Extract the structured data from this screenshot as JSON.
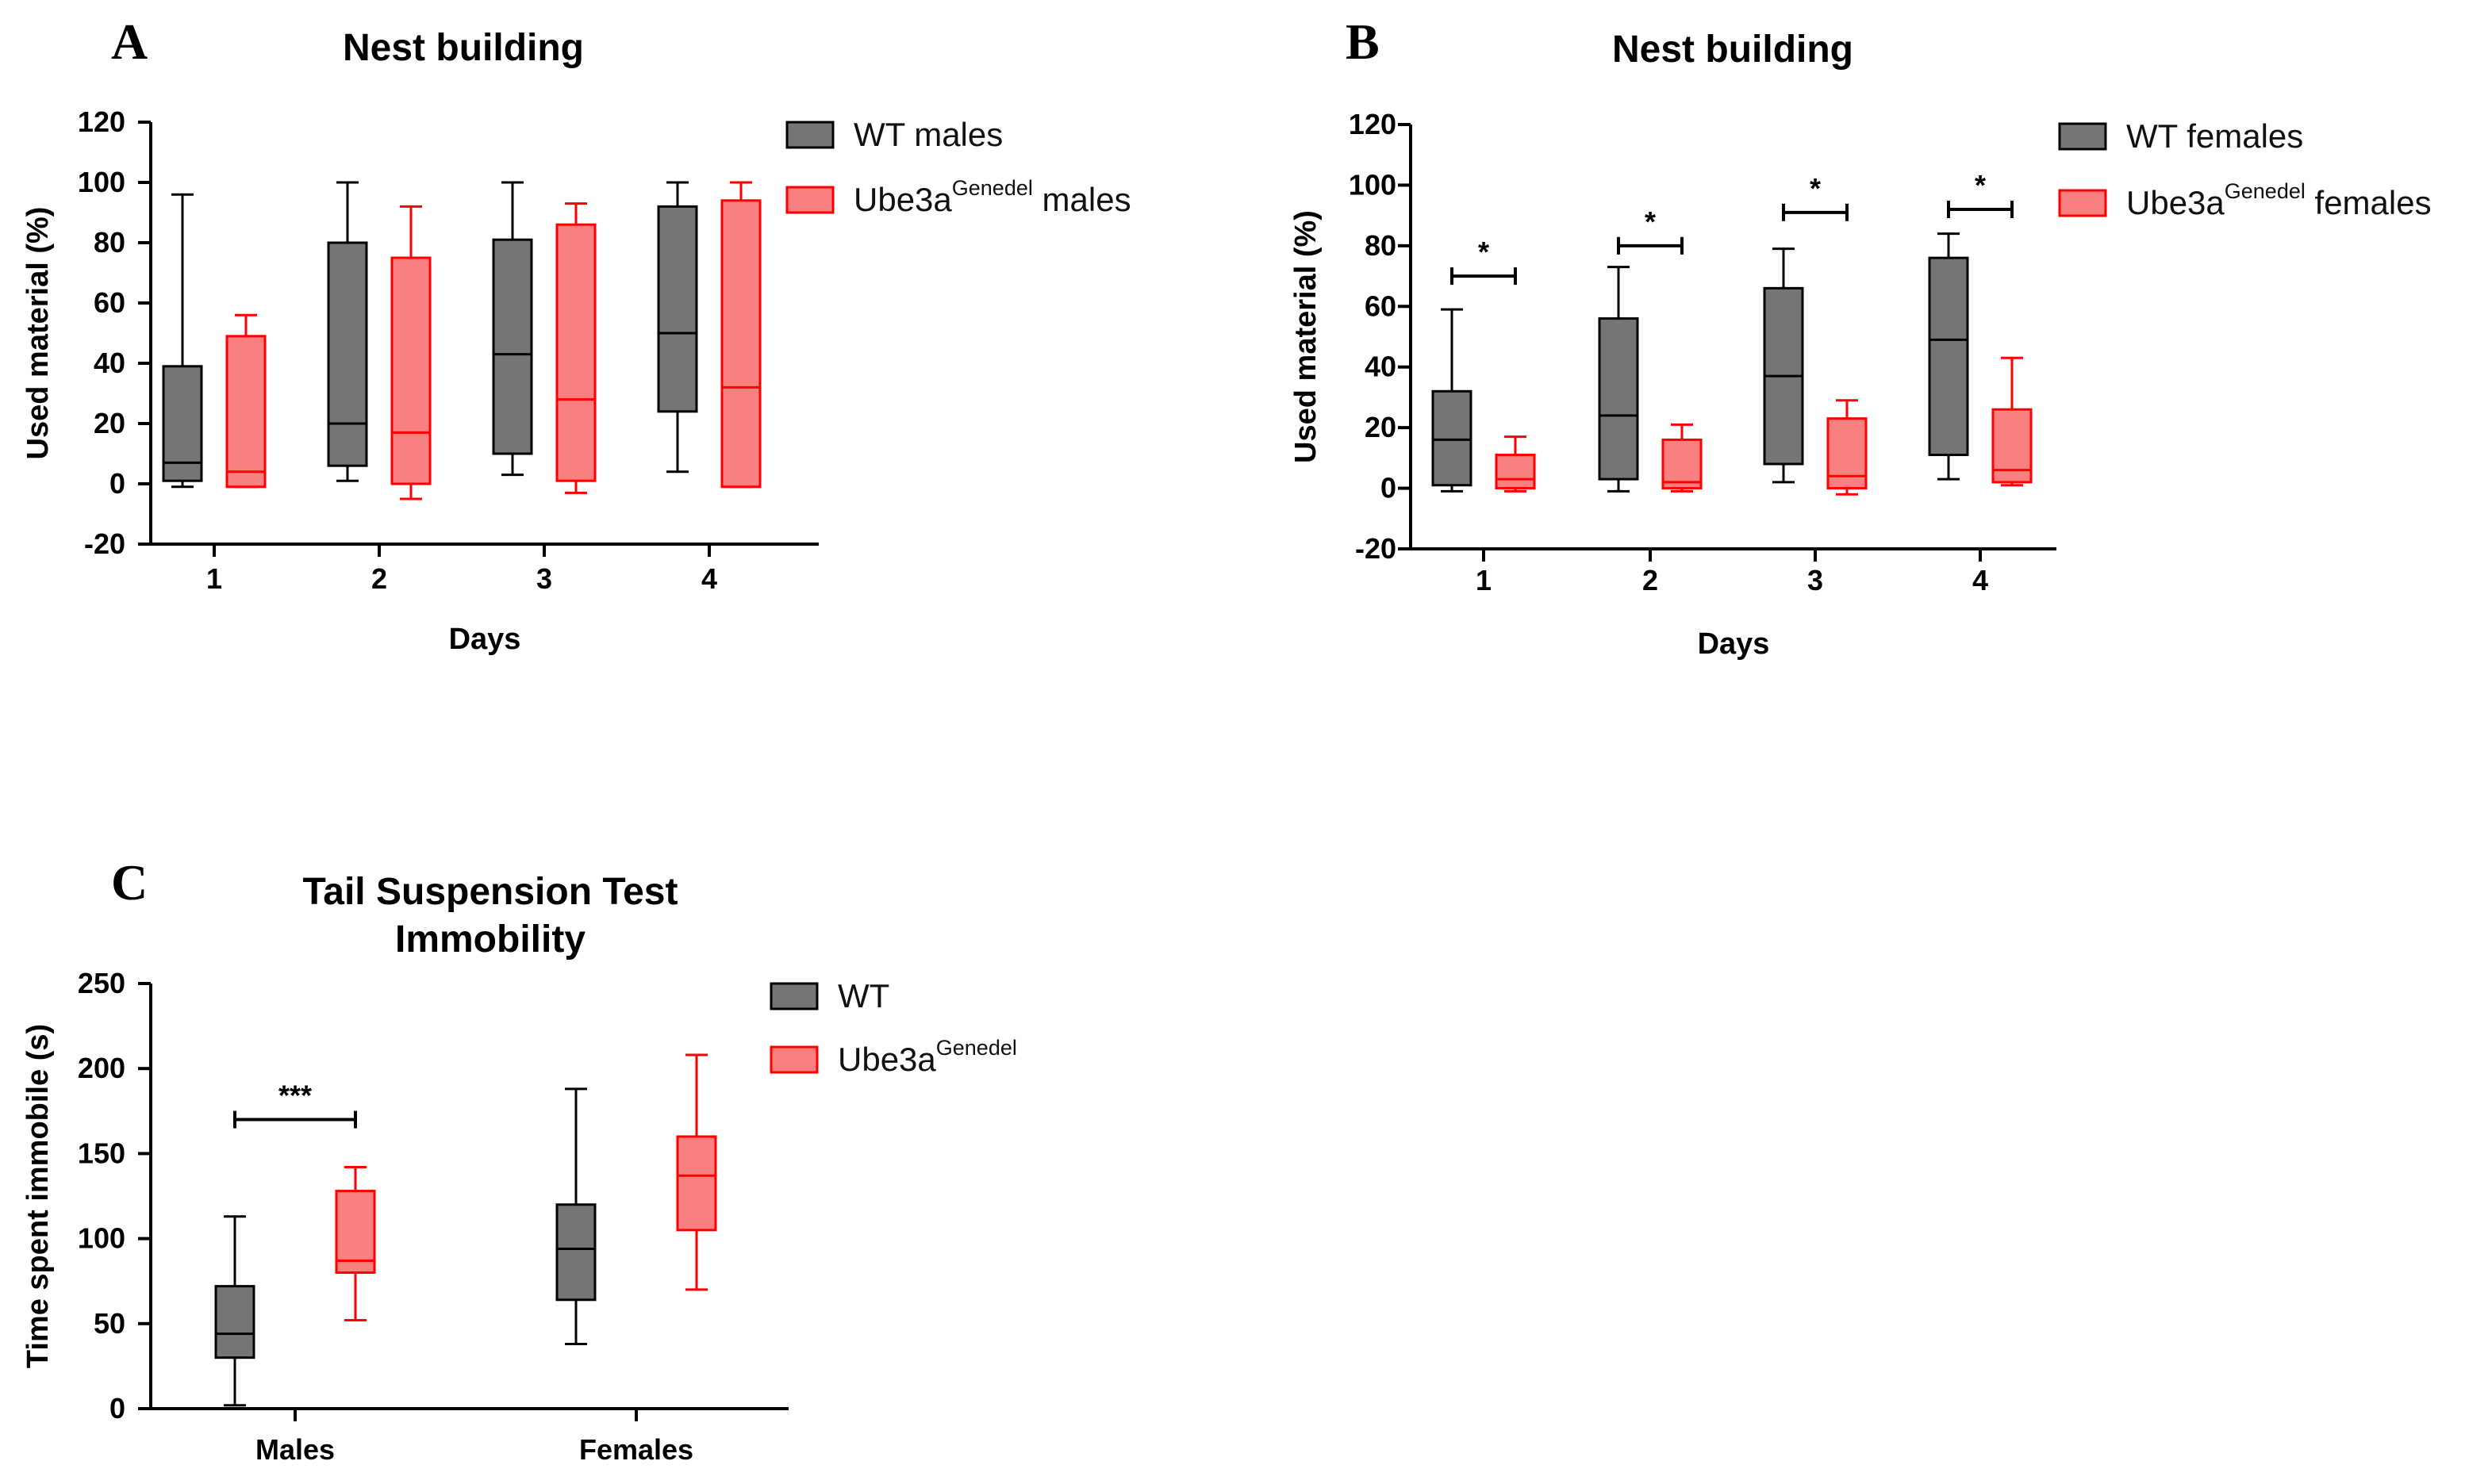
{
  "chart_data": [
    {
      "id": "A",
      "type": "box",
      "panel_letter": "A",
      "title": "Nest building",
      "xlabel": "Days",
      "ylabel": "Used material (%)",
      "ylim": [
        -20,
        120
      ],
      "yticks": [
        "-20",
        "0",
        "20",
        "40",
        "60",
        "80",
        "100",
        "120"
      ],
      "categories": [
        "1",
        "2",
        "3",
        "4"
      ],
      "legend_position": "top-right",
      "series": [
        {
          "name": "WT males",
          "legend_parts": [
            "WT males"
          ],
          "fill": "#757575",
          "stroke": "#000000",
          "boxes": [
            {
              "min": -1,
              "q1": 1,
              "median": 7,
              "q3": 39,
              "max": 96
            },
            {
              "min": 1,
              "q1": 6,
              "median": 20,
              "q3": 80,
              "max": 100
            },
            {
              "min": 3,
              "q1": 10,
              "median": 43,
              "q3": 81,
              "max": 100
            },
            {
              "min": 4,
              "q1": 24,
              "median": 50,
              "q3": 92,
              "max": 100
            }
          ]
        },
        {
          "name": "Ube3a Genedel males",
          "legend_parts": [
            "Ube3a",
            "Genedel",
            " males"
          ],
          "fill": "#F98080",
          "stroke": "#FF0000",
          "boxes": [
            {
              "min": -1,
              "q1": -1,
              "median": 4,
              "q3": 49,
              "max": 56
            },
            {
              "min": -5,
              "q1": 0,
              "median": 17,
              "q3": 75,
              "max": 92
            },
            {
              "min": -3,
              "q1": 1,
              "median": 28,
              "q3": 86,
              "max": 93
            },
            {
              "min": -1,
              "q1": -1,
              "median": 32,
              "q3": 94,
              "max": 100
            }
          ]
        }
      ],
      "significance": []
    },
    {
      "id": "B",
      "type": "box",
      "panel_letter": "B",
      "title": "Nest building",
      "xlabel": "Days",
      "ylabel": "Used material (%)",
      "ylim": [
        -20,
        120
      ],
      "yticks": [
        "-20",
        "0",
        "20",
        "40",
        "60",
        "80",
        "100",
        "120"
      ],
      "categories": [
        "1",
        "2",
        "3",
        "4"
      ],
      "legend_position": "top-right",
      "series": [
        {
          "name": "WT females",
          "legend_parts": [
            "WT females"
          ],
          "fill": "#757575",
          "stroke": "#000000",
          "boxes": [
            {
              "min": -1,
              "q1": 1,
              "median": 16,
              "q3": 32,
              "max": 59
            },
            {
              "min": -1,
              "q1": 3,
              "median": 24,
              "q3": 56,
              "max": 73
            },
            {
              "min": 2,
              "q1": 8,
              "median": 37,
              "q3": 66,
              "max": 79
            },
            {
              "min": 3,
              "q1": 11,
              "median": 49,
              "q3": 76,
              "max": 84
            }
          ]
        },
        {
          "name": "Ube3a Genedel females",
          "legend_parts": [
            "Ube3a",
            "Genedel",
            " females"
          ],
          "fill": "#F98080",
          "stroke": "#FF0000",
          "boxes": [
            {
              "min": -1,
              "q1": 0,
              "median": 3,
              "q3": 11,
              "max": 17
            },
            {
              "min": -1,
              "q1": 0,
              "median": 2,
              "q3": 16,
              "max": 21
            },
            {
              "min": -2,
              "q1": 0,
              "median": 4,
              "q3": 23,
              "max": 29
            },
            {
              "min": 1,
              "q1": 2,
              "median": 6,
              "q3": 26,
              "max": 43
            }
          ]
        }
      ],
      "significance": [
        {
          "category_index": 0,
          "label": "*",
          "y": 70
        },
        {
          "category_index": 1,
          "label": "*",
          "y": 80
        },
        {
          "category_index": 2,
          "label": "*",
          "y": 91
        },
        {
          "category_index": 3,
          "label": "*",
          "y": 92
        }
      ]
    },
    {
      "id": "C",
      "type": "box",
      "panel_letter": "C",
      "title": "Tail Suspension Test",
      "title_line2": "Immobility",
      "xlabel": "",
      "ylabel": "Time spent immobile (s)",
      "ylim": [
        0,
        250
      ],
      "yticks": [
        "0",
        "50",
        "100",
        "150",
        "200",
        "250"
      ],
      "categories": [
        "Males",
        "Females"
      ],
      "legend_position": "top-right",
      "series": [
        {
          "name": "WT",
          "legend_parts": [
            "WT"
          ],
          "fill": "#757575",
          "stroke": "#000000",
          "boxes": [
            {
              "min": 2,
              "q1": 30,
              "median": 44,
              "q3": 72,
              "max": 113
            },
            {
              "min": 38,
              "q1": 64,
              "median": 94,
              "q3": 120,
              "max": 188
            }
          ]
        },
        {
          "name": "Ube3a Genedel",
          "legend_parts": [
            "Ube3a",
            "Genedel",
            ""
          ],
          "fill": "#F98080",
          "stroke": "#FF0000",
          "boxes": [
            {
              "min": 52,
              "q1": 80,
              "median": 87,
              "q3": 128,
              "max": 142
            },
            {
              "min": 70,
              "q1": 105,
              "median": 137,
              "q3": 160,
              "max": 208
            }
          ]
        }
      ],
      "significance": [
        {
          "category_index": 0,
          "label": "***",
          "y": 170
        }
      ]
    }
  ]
}
